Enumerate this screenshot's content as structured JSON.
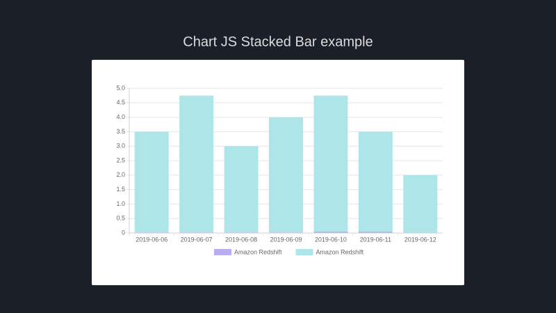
{
  "chart_data": {
    "type": "stacked_bar",
    "title": "Chart JS Stacked Bar example",
    "categories": [
      "2019-06-06",
      "2019-06-07",
      "2019-06-08",
      "2019-06-09",
      "2019-06-10",
      "2019-06-11",
      "2019-06-12"
    ],
    "series": [
      {
        "name": "Amazon Redshift",
        "color": "#b9acf0",
        "values": [
          0.02,
          0.02,
          0.02,
          0.02,
          0.05,
          0.05,
          0
        ]
      },
      {
        "name": "Amazon Redshift",
        "color": "#aee5e8",
        "values": [
          3.48,
          4.73,
          2.98,
          3.98,
          4.7,
          3.45,
          2.0
        ]
      }
    ],
    "ylim": [
      0,
      5
    ],
    "yticks": [
      0,
      0.5,
      {
        "value": 1,
        "label": "1.0"
      },
      1.5,
      {
        "value": 2,
        "label": "2.0"
      },
      2.5,
      {
        "value": 3,
        "label": "3.0"
      },
      3.5,
      {
        "value": 4,
        "label": "4.0"
      },
      4.5,
      {
        "value": 5,
        "label": "5.0"
      }
    ],
    "grid": true
  }
}
